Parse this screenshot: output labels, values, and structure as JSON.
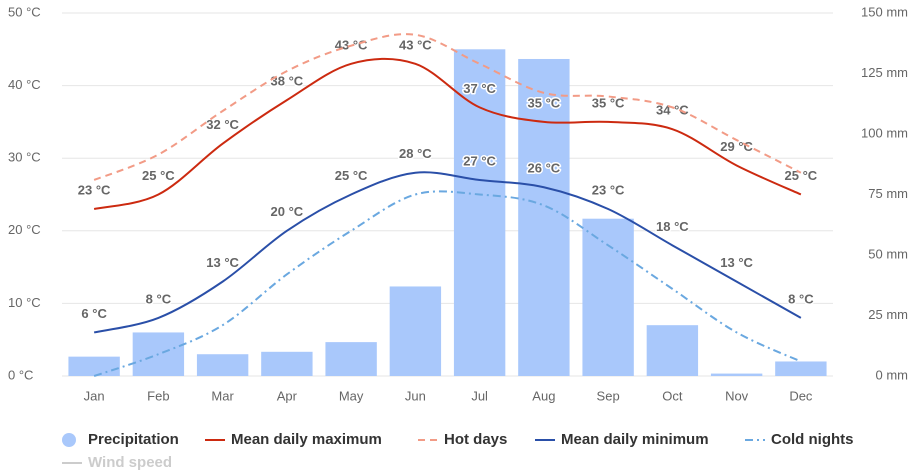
{
  "chart_data": {
    "type": "combo",
    "categories": [
      "Jan",
      "Feb",
      "Mar",
      "Apr",
      "May",
      "Jun",
      "Jul",
      "Aug",
      "Sep",
      "Oct",
      "Nov",
      "Dec"
    ],
    "ylim": [
      0,
      50
    ],
    "yticks": [
      {
        "value": 0,
        "label": "0 °C"
      },
      {
        "value": 10,
        "label": "10 °C"
      },
      {
        "value": 20,
        "label": "20 °C"
      },
      {
        "value": 30,
        "label": "30 °C"
      },
      {
        "value": 40,
        "label": "40 °C"
      },
      {
        "value": 50,
        "label": "50 °C"
      }
    ],
    "y2lim": [
      0,
      150
    ],
    "y2ticks": [
      {
        "value": 0,
        "label": "0 mm"
      },
      {
        "value": 25,
        "label": "25 mm"
      },
      {
        "value": 50,
        "label": "50 mm"
      },
      {
        "value": 75,
        "label": "75 mm"
      },
      {
        "value": 100,
        "label": "100 mm"
      },
      {
        "value": 125,
        "label": "125 mm"
      },
      {
        "value": 150,
        "label": "150 mm"
      }
    ],
    "grid": true,
    "series": [
      {
        "name": "Precipitation",
        "type": "bar",
        "axis": "y2",
        "color": "#a9c8fb",
        "values": [
          8,
          18,
          9,
          10,
          14,
          37,
          135,
          131,
          65,
          21,
          1,
          6
        ]
      },
      {
        "name": "Mean daily maximum",
        "type": "line",
        "color": "#cc2a10",
        "dash": "solid",
        "values": [
          23,
          25,
          32,
          38,
          43,
          43,
          37,
          35,
          35,
          34,
          29,
          25
        ],
        "value_labels": [
          "23 °C",
          "25 °C",
          "32 °C",
          "38 °C",
          "43 °C",
          "43 °C",
          "37 °C",
          "35 °C",
          "35 °C",
          "34 °C",
          "29 °C",
          "25 °C"
        ]
      },
      {
        "name": "Hot days",
        "type": "line",
        "color": "#f29b86",
        "dash": "dash",
        "values": [
          27,
          30.5,
          36.5,
          42,
          45.5,
          47,
          43,
          39,
          38.5,
          37,
          32.5,
          28
        ]
      },
      {
        "name": "Mean daily minimum",
        "type": "line",
        "color": "#2a4fa8",
        "dash": "solid",
        "values": [
          6,
          8,
          13,
          20,
          25,
          28,
          27,
          26,
          23,
          18,
          13,
          8
        ],
        "value_labels": [
          "6 °C",
          "8 °C",
          "13 °C",
          "20 °C",
          "25 °C",
          "28 °C",
          "27 °C",
          "26 °C",
          "23 °C",
          "18 °C",
          "13 °C",
          "8 °C"
        ]
      },
      {
        "name": "Cold nights",
        "type": "line",
        "color": "#6aa8e0",
        "dash": "dashdot",
        "values": [
          0,
          3,
          7,
          14,
          20,
          25,
          25,
          23.5,
          18,
          12,
          6,
          2
        ]
      },
      {
        "name": "Wind speed",
        "type": "line",
        "color": "#cccccc",
        "visible": false
      }
    ]
  }
}
